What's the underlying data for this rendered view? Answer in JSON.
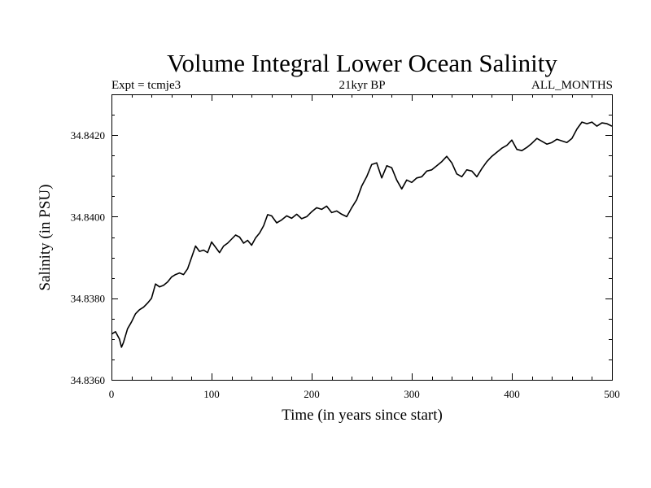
{
  "chart_data": {
    "type": "line",
    "title": "Volume Integral Lower Ocean Salinity",
    "subtitle_left": "Expt = tcmje3",
    "subtitle_center": "21kyr BP",
    "subtitle_right": "ALL_MONTHS",
    "xlabel": "Time (in years since start)",
    "ylabel": "Salinity (in PSU)",
    "xlim": [
      0,
      500
    ],
    "ylim": [
      34.836,
      34.843
    ],
    "xticks": [
      0,
      100,
      200,
      300,
      400,
      500
    ],
    "xtick_labels": [
      "0",
      "100",
      "200",
      "300",
      "400",
      "500"
    ],
    "yticks": [
      34.836,
      34.838,
      34.84,
      34.842
    ],
    "ytick_labels": [
      "34.8360",
      "34.8380",
      "34.8400",
      "34.8420"
    ],
    "grid": false,
    "series": [
      {
        "x": [
          0,
          4,
          8,
          10,
          12,
          16,
          20,
          24,
          28,
          32,
          36,
          40,
          44,
          48,
          52,
          56,
          60,
          64,
          68,
          72,
          76,
          80,
          84,
          88,
          92,
          96,
          100,
          104,
          108,
          112,
          116,
          120,
          124,
          128,
          132,
          136,
          140,
          144,
          148,
          152,
          156,
          160,
          165,
          170,
          175,
          180,
          185,
          190,
          195,
          200,
          205,
          210,
          215,
          220,
          225,
          230,
          235,
          240,
          245,
          250,
          255,
          260,
          265,
          270,
          275,
          280,
          285,
          290,
          295,
          300,
          305,
          310,
          315,
          320,
          325,
          330,
          335,
          340,
          345,
          350,
          355,
          360,
          365,
          370,
          375,
          380,
          385,
          390,
          395,
          400,
          405,
          410,
          415,
          420,
          425,
          430,
          435,
          440,
          445,
          450,
          455,
          460,
          465,
          470,
          475,
          480,
          485,
          490,
          495,
          500
        ],
        "values": [
          34.83712,
          34.83718,
          34.837,
          34.8368,
          34.83692,
          34.83725,
          34.83742,
          34.83762,
          34.83772,
          34.83778,
          34.83788,
          34.838,
          34.83835,
          34.83828,
          34.83832,
          34.8384,
          34.83852,
          34.83858,
          34.83862,
          34.83858,
          34.83872,
          34.839,
          34.83928,
          34.83915,
          34.83918,
          34.83912,
          34.83938,
          34.83925,
          34.83912,
          34.83928,
          34.83935,
          34.83945,
          34.83955,
          34.8395,
          34.83935,
          34.83942,
          34.8393,
          34.83948,
          34.8396,
          34.83978,
          34.84005,
          34.84002,
          34.83985,
          34.83992,
          34.84002,
          34.83996,
          34.84006,
          34.83995,
          34.84,
          34.84012,
          34.84022,
          34.84018,
          34.84026,
          34.8401,
          34.84014,
          34.84006,
          34.84,
          34.84022,
          34.84042,
          34.84075,
          34.84098,
          34.84128,
          34.84132,
          34.84095,
          34.84125,
          34.8412,
          34.8409,
          34.84068,
          34.8409,
          34.84084,
          34.84095,
          34.84098,
          34.84112,
          34.84115,
          34.84125,
          34.84135,
          34.84148,
          34.84132,
          34.84105,
          34.84098,
          34.84115,
          34.84112,
          34.84098,
          34.84118,
          34.84135,
          34.84148,
          34.84158,
          34.84168,
          34.84175,
          34.84188,
          34.84165,
          34.84162,
          34.8417,
          34.8418,
          34.84192,
          34.84185,
          34.84178,
          34.84182,
          34.8419,
          34.84186,
          34.84182,
          34.84192,
          34.84215,
          34.84232,
          34.84228,
          34.84232,
          34.84222,
          34.8423,
          34.84228,
          34.84222
        ]
      }
    ]
  }
}
